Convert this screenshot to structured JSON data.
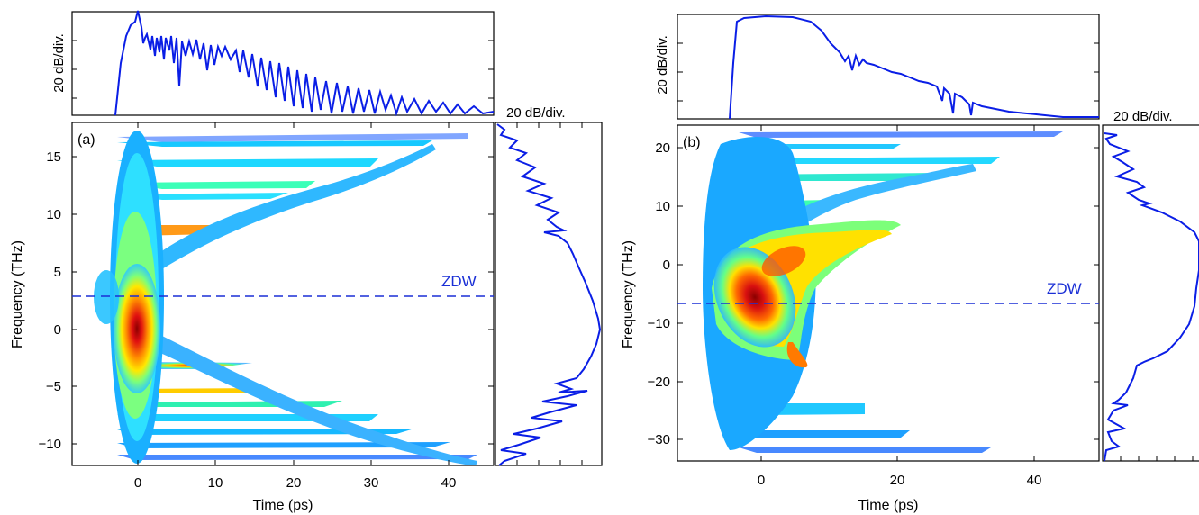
{
  "colors": {
    "trace": "#0a1ee6",
    "frame": "#000000",
    "zdw": "#1a2fd6"
  },
  "chart_data": [
    {
      "panel": "a",
      "type": "heatmap",
      "label": "(a)",
      "xlabel": "Time (ps)",
      "ylabel": "Frequency (THz)",
      "xlim": [
        -8,
        45
      ],
      "ylim": [
        -12,
        18
      ],
      "xticks": [
        0,
        10,
        20,
        30,
        40
      ],
      "yticks": [
        -10,
        -5,
        0,
        5,
        10,
        15
      ],
      "top_marginal_label": "20 dB/div.",
      "side_marginal_label": "20 dB/div.",
      "zdw": {
        "label": "ZDW",
        "frequency": 2.7
      },
      "peak": {
        "time": 0,
        "frequency": 0
      },
      "spectrum_peaks_thz": [
        16.5,
        15.4,
        14.2,
        12.8,
        11.2,
        8.8,
        -4.2,
        -5.6,
        -7.3,
        -8.4,
        -9.4,
        -10.3,
        -11.2
      ],
      "temporal_ridge_ps": [
        0.2,
        3,
        6,
        10,
        14,
        18,
        22,
        26,
        30,
        34,
        38,
        42
      ]
    },
    {
      "panel": "b",
      "type": "heatmap",
      "label": "(b)",
      "xlabel": "Time (ps)",
      "ylabel": "Frequency (THz)",
      "xlim": [
        -12,
        50
      ],
      "ylim": [
        -35,
        23
      ],
      "xticks": [
        0,
        20,
        40
      ],
      "yticks": [
        -30,
        -20,
        -10,
        0,
        10,
        20
      ],
      "top_marginal_label": "20 dB/div.",
      "side_marginal_label": "20 dB/div.",
      "zdw": {
        "label": "ZDW",
        "frequency": -7
      },
      "peak": {
        "time": -1,
        "frequency": -4
      },
      "spectrum_peaks_thz": [
        22,
        20,
        17,
        14,
        10,
        -24.5,
        -29.2,
        -32
      ],
      "temporal_ridge_ps": [
        -3,
        0,
        3,
        11,
        16,
        30,
        40
      ]
    }
  ]
}
